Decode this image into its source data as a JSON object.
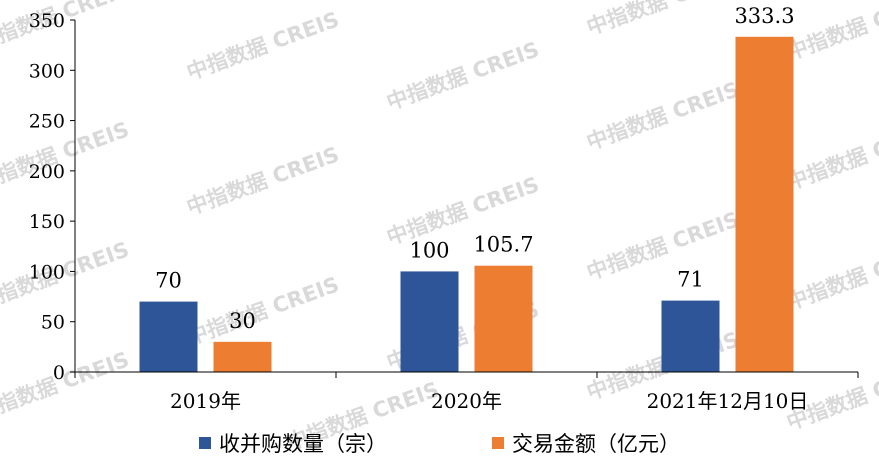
{
  "chart_data": {
    "type": "bar",
    "categories": [
      "2019年",
      "2020年",
      "2021年12月10日"
    ],
    "series": [
      {
        "name": "收并购数量（宗）",
        "values": [
          70,
          100,
          71
        ],
        "labels": [
          "70",
          "100",
          "71"
        ],
        "color": "#2e5597"
      },
      {
        "name": "交易金额（亿元）",
        "values": [
          30,
          105.7,
          333.3
        ],
        "labels": [
          "30",
          "105.7",
          "333.3"
        ],
        "color": "#ed7d31"
      }
    ],
    "ylim": [
      0,
      350
    ],
    "yticks": [
      "0",
      "50",
      "100",
      "150",
      "200",
      "250",
      "300",
      "350"
    ],
    "legend_position": "bottom",
    "grid": false
  },
  "watermark": "中指数据 CREIS"
}
